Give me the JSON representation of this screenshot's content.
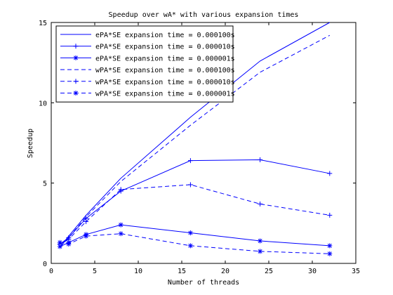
{
  "chart_data": {
    "type": "line",
    "title": "Speedup over wA* with various expansion times",
    "xlabel": "Number of threads",
    "ylabel": "Speedup",
    "xlim": [
      0,
      35
    ],
    "ylim": [
      0,
      15
    ],
    "xticks": [
      0,
      5,
      10,
      15,
      20,
      25,
      30,
      35
    ],
    "yticks": [
      0,
      5,
      10,
      15
    ],
    "grid": false,
    "legend_position": "top-left",
    "line_color": "#0000ff",
    "series": [
      {
        "name": "ePA*SE expansion time = 0.000100s",
        "style": "solid",
        "marker": "none",
        "x": [
          1,
          2,
          4,
          8,
          16,
          24,
          32
        ],
        "y": [
          1.0,
          1.7,
          3.0,
          5.3,
          9.1,
          12.6,
          15.0
        ]
      },
      {
        "name": "ePA*SE expansion time = 0.000010s",
        "style": "solid",
        "marker": "plus",
        "x": [
          1,
          2,
          4,
          8,
          16,
          24,
          32
        ],
        "y": [
          1.2,
          1.6,
          2.8,
          4.5,
          6.4,
          6.45,
          5.6
        ]
      },
      {
        "name": "ePA*SE expansion time = 0.000001s",
        "style": "solid",
        "marker": "star",
        "x": [
          1,
          2,
          4,
          8,
          16,
          24,
          32
        ],
        "y": [
          1.05,
          1.3,
          1.8,
          2.4,
          1.9,
          1.4,
          1.1
        ]
      },
      {
        "name": "wPA*SE expansion time = 0.000100s",
        "style": "dashed",
        "marker": "none",
        "x": [
          1,
          2,
          4,
          8,
          16,
          24,
          32
        ],
        "y": [
          1.0,
          1.6,
          2.9,
          5.1,
          8.6,
          11.9,
          14.2
        ]
      },
      {
        "name": "wPA*SE expansion time = 0.000010s",
        "style": "dashed",
        "marker": "plus",
        "x": [
          1,
          2,
          4,
          8,
          16,
          24,
          32
        ],
        "y": [
          1.2,
          1.5,
          2.6,
          4.6,
          4.9,
          3.7,
          3.0
        ]
      },
      {
        "name": "wPA*SE expansion time = 0.000001s",
        "style": "dashed",
        "marker": "star",
        "x": [
          1,
          2,
          4,
          8,
          16,
          24,
          32
        ],
        "y": [
          1.3,
          1.2,
          1.7,
          1.85,
          1.1,
          0.75,
          0.6
        ]
      }
    ]
  }
}
